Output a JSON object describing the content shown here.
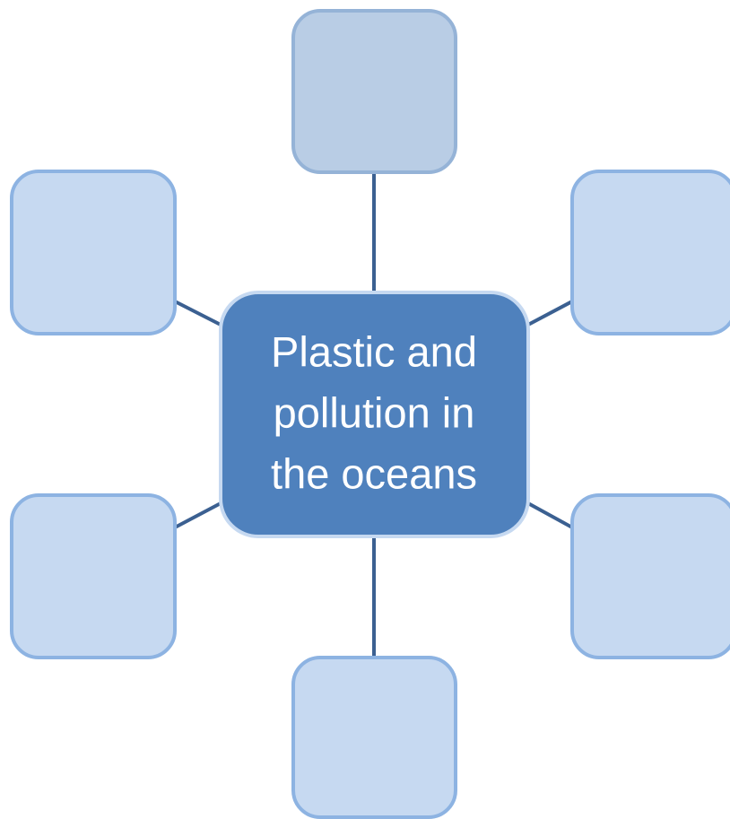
{
  "center": {
    "lines": [
      "Plastic and",
      "pollution in",
      "the oceans"
    ]
  }
}
